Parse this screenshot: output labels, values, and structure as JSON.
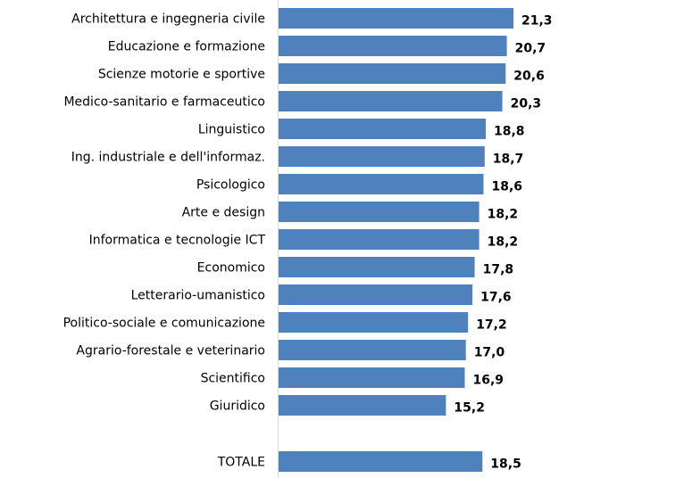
{
  "chart_data": {
    "type": "bar",
    "orientation": "horizontal",
    "categories": [
      "Architettura e ingegneria civile",
      "Educazione e formazione",
      "Scienze motorie e sportive",
      "Medico-sanitario e farmaceutico",
      "Linguistico",
      "Ing. industriale e dell'informaz.",
      "Psicologico",
      "Arte e design",
      "Informatica e tecnologie ICT",
      "Economico",
      "Letterario-umanistico",
      "Politico-sociale e comunicazione",
      "Agrario-forestale e veterinario",
      "Scientifico",
      "Giuridico",
      "TOTALE"
    ],
    "values": [
      21.3,
      20.7,
      20.6,
      20.3,
      18.8,
      18.7,
      18.6,
      18.2,
      18.2,
      17.8,
      17.6,
      17.2,
      17.0,
      16.9,
      15.2,
      18.5
    ],
    "value_labels": [
      "21,3",
      "20,7",
      "20,6",
      "20,3",
      "18,8",
      "18,7",
      "18,6",
      "18,2",
      "18,2",
      "17,8",
      "17,6",
      "17,2",
      "17,0",
      "16,9",
      "15,2",
      "18,5"
    ],
    "gap_before_last": true,
    "xlim": [
      0,
      21.3
    ],
    "grid": false,
    "legend": "none",
    "bar_color": "#4F81BD",
    "axis_color": "#D9D9D9",
    "title": "",
    "xlabel": "",
    "ylabel": ""
  }
}
